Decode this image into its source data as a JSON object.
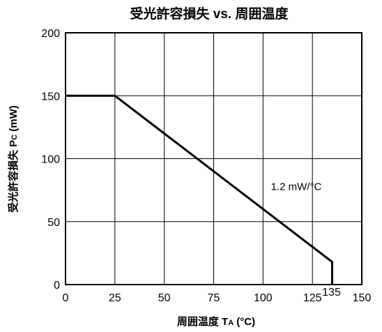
{
  "chart_data": {
    "type": "line",
    "title": "受光許容損失 vs. 周囲温度",
    "xlabel": {
      "main": "周囲温度 T",
      "sub": "A",
      "unit": " (°C)"
    },
    "ylabel": {
      "main": "受光許容損失 P",
      "sub": "C",
      "unit": " (mW)"
    },
    "xlim": [
      0,
      150
    ],
    "ylim": [
      0,
      200
    ],
    "x_ticks": [
      0,
      25,
      50,
      75,
      100,
      125,
      150
    ],
    "y_ticks": [
      0,
      50,
      100,
      150,
      200
    ],
    "grid": true,
    "extra_x_tick": {
      "value": 135,
      "label": "135"
    },
    "series": [
      {
        "x": [
          0,
          25,
          135,
          135
        ],
        "y": [
          150,
          150,
          18,
          0
        ]
      }
    ],
    "annotations": [
      {
        "text": "1.2 mW/°C",
        "x": 104,
        "y": 75
      }
    ]
  }
}
